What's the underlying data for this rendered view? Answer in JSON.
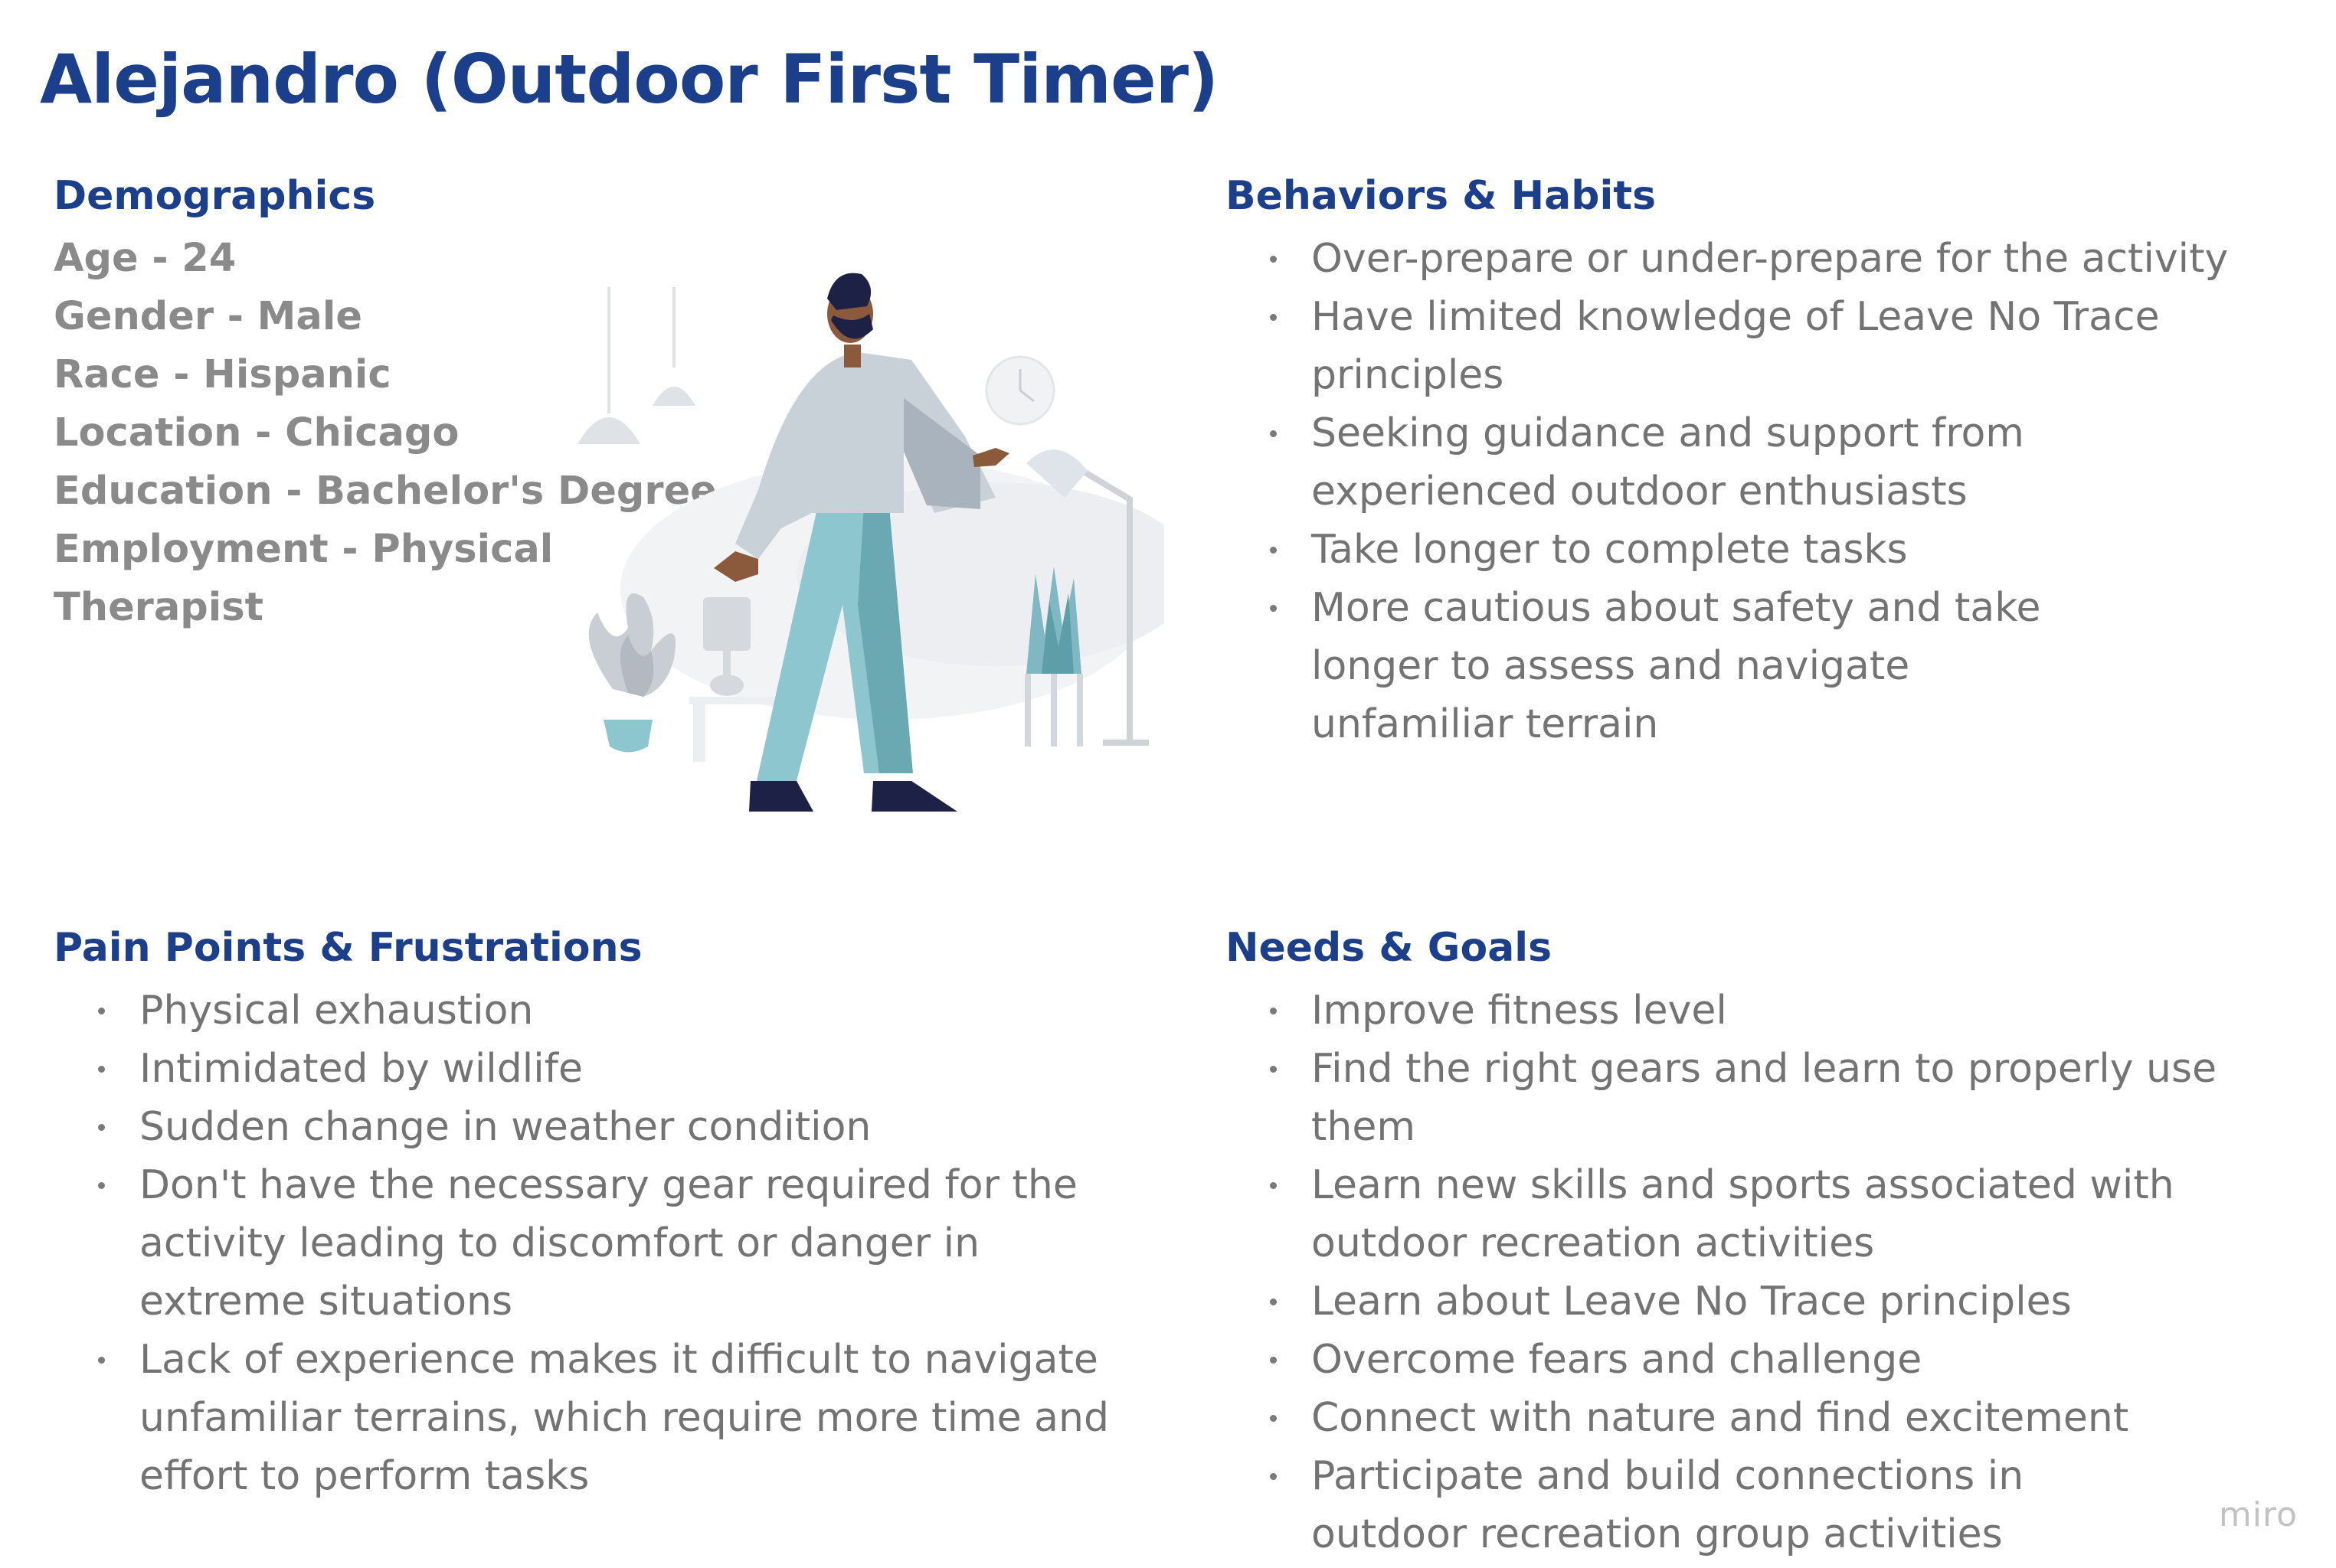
{
  "page": {
    "title": "Alejandro (Outdoor First Timer)"
  },
  "demographics": {
    "heading": "Demographics",
    "items": [
      "Age - 24",
      "Gender - Male",
      "Race - Hispanic",
      "Location - Chicago",
      "Education - Bachelor's Degree",
      "Employment - Physical",
      "Therapist"
    ]
  },
  "behaviors": {
    "heading": "Behaviors & Habits",
    "items": [
      "Over-prepare or under-prepare for the activity",
      "Have limited knowledge of Leave No Trace principles",
      "Seeking guidance and support from experienced outdoor enthusiasts",
      "Take longer to complete tasks",
      "More cautious about safety and take longer to assess and navigate unfamiliar terrain"
    ]
  },
  "pain_points": {
    "heading": "Pain Points & Frustrations",
    "items": [
      "Physical exhaustion",
      "Intimidated by wildlife",
      "Sudden change in weather condition",
      "Don't have the necessary gear required for the activity leading to discomfort or danger in extreme situations",
      "Lack of experience makes it difficult to navigate unfamiliar terrains, which require more time and effort to perform tasks"
    ]
  },
  "needs": {
    "heading": "Needs & Goals",
    "items": [
      "Improve fitness level",
      "Find the right gears and learn to properly use them",
      "Learn new skills and sports associated with outdoor recreation activities",
      "Learn about Leave No Trace principles",
      "Overcome fears and challenge",
      "Connect with nature and find excitement",
      "Participate and build connections in outdoor recreation group activities"
    ]
  },
  "illustration": {
    "icon": "person-in-living-room-illustration"
  },
  "branding": {
    "logo_text": "miro"
  },
  "colors": {
    "heading": "#1c3f8c",
    "demographics_text": "#8a8a8a",
    "body_text": "#737373",
    "logo": "#c2c2c2"
  }
}
